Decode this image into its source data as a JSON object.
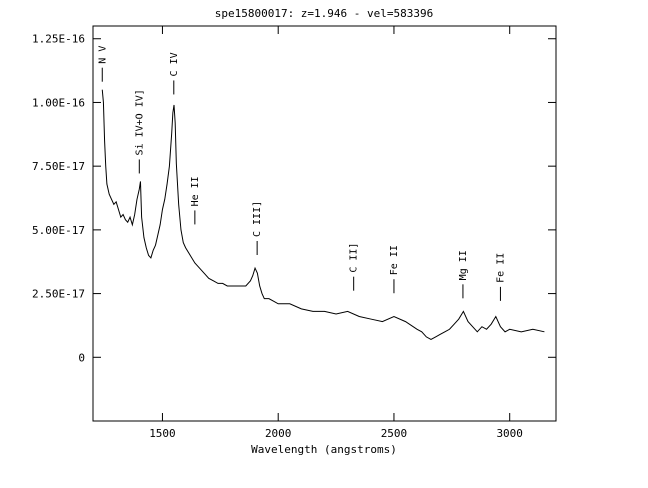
{
  "chart_data": {
    "type": "line",
    "title": "spe15800017: z=1.946 - vel=583396",
    "xlabel": "Wavelength (angstroms)",
    "ylabel": "",
    "xlim": [
      1200,
      3200
    ],
    "ylim": [
      -2.5e-17,
      1.3e-16
    ],
    "x_ticks": [
      {
        "value": 1500,
        "label": "1500"
      },
      {
        "value": 2000,
        "label": "2000"
      },
      {
        "value": 2500,
        "label": "2500"
      },
      {
        "value": 3000,
        "label": "3000"
      }
    ],
    "y_ticks": [
      {
        "value": 0,
        "label": "0"
      },
      {
        "value": 2.5e-17,
        "label": "2.50E-17"
      },
      {
        "value": 5e-17,
        "label": "5.00E-17"
      },
      {
        "value": 7.5e-17,
        "label": "7.50E-17"
      },
      {
        "value": 1e-16,
        "label": "1.00E-16"
      },
      {
        "value": 1.25e-16,
        "label": "1.25E-16"
      }
    ],
    "grid": false,
    "series": [
      {
        "name": "",
        "color": "#000000",
        "x": [
          1240,
          1245,
          1250,
          1255,
          1260,
          1270,
          1280,
          1290,
          1300,
          1310,
          1320,
          1330,
          1340,
          1350,
          1360,
          1370,
          1380,
          1390,
          1400,
          1405,
          1410,
          1420,
          1430,
          1440,
          1450,
          1460,
          1470,
          1480,
          1490,
          1500,
          1510,
          1520,
          1530,
          1540,
          1545,
          1550,
          1555,
          1560,
          1570,
          1580,
          1590,
          1600,
          1620,
          1640,
          1660,
          1680,
          1700,
          1720,
          1740,
          1760,
          1780,
          1800,
          1820,
          1840,
          1860,
          1880,
          1890,
          1900,
          1910,
          1920,
          1930,
          1940,
          1960,
          1980,
          2000,
          2050,
          2100,
          2150,
          2200,
          2250,
          2300,
          2350,
          2400,
          2450,
          2500,
          2550,
          2600,
          2620,
          2640,
          2660,
          2680,
          2700,
          2720,
          2740,
          2760,
          2780,
          2800,
          2820,
          2840,
          2860,
          2880,
          2900,
          2920,
          2940,
          2960,
          2980,
          3000,
          3050,
          3100,
          3150
        ],
        "y": [
          1.05e-16,
          1e-16,
          8.5e-17,
          7.5e-17,
          6.8e-17,
          6.4e-17,
          6.2e-17,
          6e-17,
          6.1e-17,
          5.8e-17,
          5.5e-17,
          5.6e-17,
          5.4e-17,
          5.3e-17,
          5.5e-17,
          5.2e-17,
          5.6e-17,
          6.2e-17,
          6.6e-17,
          6.9e-17,
          5.5e-17,
          4.7e-17,
          4.3e-17,
          4e-17,
          3.9e-17,
          4.2e-17,
          4.4e-17,
          4.8e-17,
          5.2e-17,
          5.8e-17,
          6.2e-17,
          6.8e-17,
          7.5e-17,
          8.8e-17,
          9.6e-17,
          9.9e-17,
          9.2e-17,
          7.6e-17,
          6e-17,
          5e-17,
          4.5e-17,
          4.3e-17,
          4e-17,
          3.7e-17,
          3.5e-17,
          3.3e-17,
          3.1e-17,
          3e-17,
          2.9e-17,
          2.9e-17,
          2.8e-17,
          2.8e-17,
          2.8e-17,
          2.8e-17,
          2.8e-17,
          3e-17,
          3.2e-17,
          3.5e-17,
          3.3e-17,
          2.8e-17,
          2.5e-17,
          2.3e-17,
          2.3e-17,
          2.2e-17,
          2.1e-17,
          2.1e-17,
          1.9e-17,
          1.8e-17,
          1.8e-17,
          1.7e-17,
          1.8e-17,
          1.6e-17,
          1.5e-17,
          1.4e-17,
          1.6e-17,
          1.4e-17,
          1.1e-17,
          1e-17,
          8e-18,
          7e-18,
          8e-18,
          9e-18,
          1e-17,
          1.1e-17,
          1.3e-17,
          1.5e-17,
          1.8e-17,
          1.4e-17,
          1.2e-17,
          1e-17,
          1.2e-17,
          1.1e-17,
          1.3e-17,
          1.6e-17,
          1.2e-17,
          1e-17,
          1.1e-17,
          1e-17,
          1.1e-17,
          1e-17
        ]
      }
    ],
    "annotations": [
      {
        "label": "N V",
        "x": 1240,
        "y_line": 1.05e-16
      },
      {
        "label": "Si IV+O IV]",
        "x": 1400,
        "y_line": 6.9e-17
      },
      {
        "label": "C IV",
        "x": 1549,
        "y_line": 1e-16
      },
      {
        "label": "He II",
        "x": 1640,
        "y_line": 4.9e-17
      },
      {
        "label": "C III]",
        "x": 1909,
        "y_line": 3.7e-17
      },
      {
        "label": "C II]",
        "x": 2326,
        "y_line": 2.3e-17
      },
      {
        "label": "Fe II",
        "x": 2500,
        "y_line": 2.2e-17
      },
      {
        "label": "Mg II",
        "x": 2798,
        "y_line": 2e-17
      },
      {
        "label": "Fe II",
        "x": 2960,
        "y_line": 1.9e-17
      }
    ]
  }
}
